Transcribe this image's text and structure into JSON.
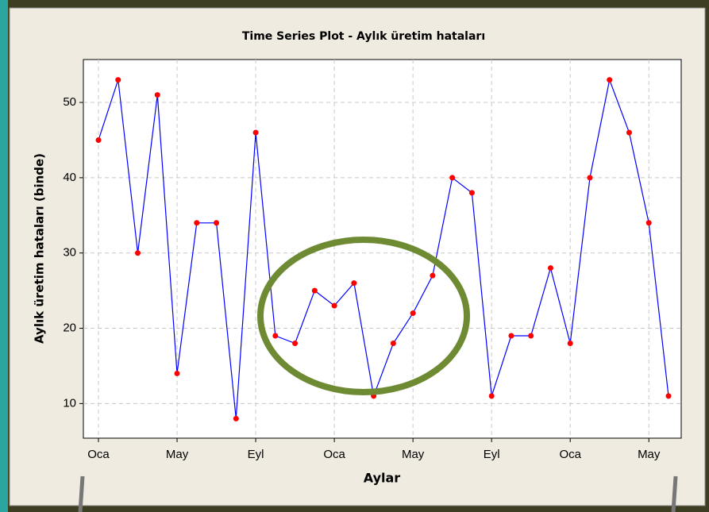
{
  "chart_data": {
    "type": "line",
    "title": "Time Series Plot - Aylık üretim hataları",
    "x_label": "Aylar",
    "y_label": "Aylık üretim hataları (binde)",
    "categories": [
      "Oca",
      null,
      null,
      null,
      "May",
      null,
      null,
      null,
      "Eyl",
      null,
      null,
      null,
      "Oca",
      null,
      null,
      null,
      "May",
      null,
      null,
      null,
      "Eyl",
      null,
      null,
      null,
      "Oca",
      null,
      null,
      null,
      "May",
      null
    ],
    "series": [
      {
        "name": "Aylık üretim hataları",
        "color": "#0000ff",
        "marker_color": "#ff0000",
        "values": [
          45,
          53,
          30,
          51,
          14,
          34,
          34,
          8,
          46,
          19,
          18,
          25,
          23,
          26,
          11,
          18,
          22,
          27,
          40,
          38,
          11,
          19,
          19,
          28,
          18,
          40,
          53,
          46,
          34,
          11
        ]
      }
    ],
    "ylim": [
      5.4,
      55.7
    ],
    "yticks": [
      10,
      20,
      30,
      40,
      50
    ],
    "grid": true
  }
}
